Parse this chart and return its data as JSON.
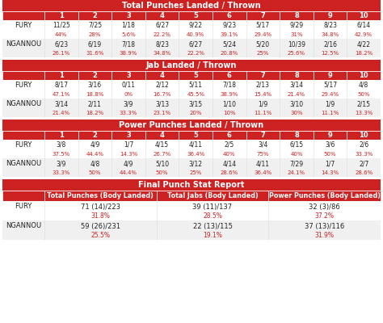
{
  "dark_red": "#cc2222",
  "red": "#cc2222",
  "white": "#ffffff",
  "light_gray": "#f0f0f0",
  "text_color": "#222222",
  "red_text": "#cc2222",
  "section1_title": "Total Punches Landed / Thrown",
  "section1_cols": [
    "",
    "1",
    "2",
    "3",
    "4",
    "5",
    "6",
    "7",
    "8",
    "9",
    "10"
  ],
  "section1_fury": [
    "FURY",
    "11/25",
    "7/25",
    "1/18",
    "6/27",
    "9/22",
    "9/23",
    "5/17",
    "9/29",
    "8/23",
    "6/14"
  ],
  "section1_fury_pct": [
    "",
    "44%",
    "28%",
    "5.6%",
    "22.2%",
    "40.9%",
    "39.1%",
    "29.4%",
    "31%",
    "34.8%",
    "42.9%"
  ],
  "section1_ngan": [
    "NGANNOU",
    "6/23",
    "6/19",
    "7/18",
    "8/23",
    "6/27",
    "5/24",
    "5/20",
    "10/39",
    "2/16",
    "4/22"
  ],
  "section1_ngan_pct": [
    "",
    "26.1%",
    "31.6%",
    "38.9%",
    "34.8%",
    "22.2%",
    "20.8%",
    "25%",
    "25.6%",
    "12.5%",
    "18.2%"
  ],
  "section2_title": "Jab Landed / Thrown",
  "section2_cols": [
    "",
    "1",
    "2",
    "3",
    "4",
    "5",
    "6",
    "7",
    "8",
    "9",
    "10"
  ],
  "section2_fury": [
    "FURY",
    "8/17",
    "3/16",
    "0/11",
    "2/12",
    "5/11",
    "7/18",
    "2/13",
    "3/14",
    "5/17",
    "4/8"
  ],
  "section2_fury_pct": [
    "",
    "47.1%",
    "18.8%",
    "0%",
    "16.7%",
    "45.5%",
    "38.9%",
    "15.4%",
    "21.4%",
    "29.4%",
    "50%"
  ],
  "section2_ngan": [
    "NGANNOU",
    "3/14",
    "2/11",
    "3/9",
    "3/13",
    "3/15",
    "1/10",
    "1/9",
    "3/10",
    "1/9",
    "2/15"
  ],
  "section2_ngan_pct": [
    "",
    "21.4%",
    "18.2%",
    "33.3%",
    "23.1%",
    "20%",
    "10%",
    "11.1%",
    "30%",
    "11.1%",
    "13.3%"
  ],
  "section3_title": "Power Punches Landed / Thrown",
  "section3_cols": [
    "",
    "1",
    "2",
    "3",
    "4",
    "5",
    "6",
    "7",
    "8",
    "9",
    "10"
  ],
  "section3_fury": [
    "FURY",
    "3/8",
    "4/9",
    "1/7",
    "4/15",
    "4/11",
    "2/5",
    "3/4",
    "6/15",
    "3/6",
    "2/6"
  ],
  "section3_fury_pct": [
    "",
    "37.5%",
    "44.4%",
    "14.3%",
    "26.7%",
    "36.4%",
    "40%",
    "75%",
    "40%",
    "50%",
    "33.3%"
  ],
  "section3_ngan": [
    "NGANNOU",
    "3/9",
    "4/8",
    "4/9",
    "5/10",
    "3/12",
    "4/14",
    "4/11",
    "7/29",
    "1/7",
    "2/7"
  ],
  "section3_ngan_pct": [
    "",
    "33.3%",
    "50%",
    "44.4%",
    "50%",
    "25%",
    "28.6%",
    "36.4%",
    "24.1%",
    "14.3%",
    "28.6%"
  ],
  "section4_title": "Final Punch Stat Report",
  "section4_subcols": [
    "",
    "Total Punches (Body Landed)",
    "Total Jabs (Body Landed)",
    "Power Punches (Body Landed)"
  ],
  "section4_fury": [
    "FURY",
    "71 (14)/223",
    "39 (11)/137",
    "32 (3)/86"
  ],
  "section4_fury_pct": [
    "",
    "31.8%",
    "28.5%",
    "37.2%"
  ],
  "section4_ngan": [
    "NGANNOU",
    "59 (26)/231",
    "22 (13)/115",
    "37 (13)/116"
  ],
  "section4_ngan_pct": [
    "",
    "25.5%",
    "19.1%",
    "31.9%"
  ]
}
